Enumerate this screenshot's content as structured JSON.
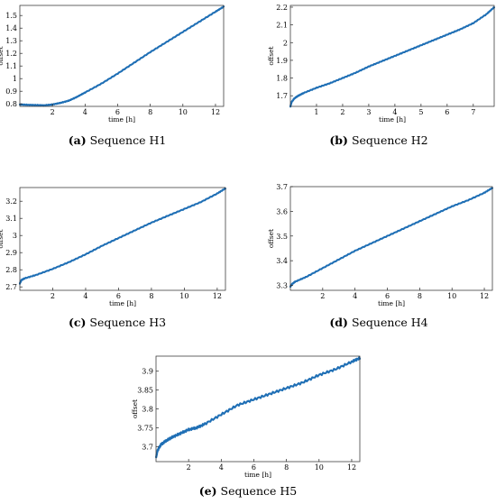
{
  "figures": [
    {
      "caption_tag": "(a)",
      "caption_text": "Sequence H1"
    },
    {
      "caption_tag": "(b)",
      "caption_text": "Sequence H2"
    },
    {
      "caption_tag": "(c)",
      "caption_text": "Sequence H3"
    },
    {
      "caption_tag": "(d)",
      "caption_text": "Sequence H4"
    },
    {
      "caption_tag": "(e)",
      "caption_text": "Sequence H5"
    }
  ],
  "chart_data": [
    {
      "type": "line",
      "xlabel": "time [h]",
      "ylabel": "offset",
      "xlim": [
        0,
        12.5
      ],
      "ylim": [
        0.78,
        1.58
      ],
      "xticks": [
        2,
        4,
        6,
        8,
        10,
        12
      ],
      "yticks": [
        0.8,
        0.9,
        1,
        1.1,
        1.2,
        1.3,
        1.4,
        1.5
      ],
      "ytick_labels": [
        "0.8",
        "0.9",
        "1",
        "1.1",
        "1.2",
        "1.3",
        "1.4",
        "1.5"
      ],
      "series": [
        {
          "color": "#1f6fb5",
          "x": [
            0,
            0.5,
            1,
            1.5,
            2,
            2.5,
            3,
            3.5,
            4,
            5,
            6,
            7,
            8,
            9,
            10,
            11,
            12,
            12.5
          ],
          "y": [
            0.795,
            0.792,
            0.79,
            0.788,
            0.795,
            0.808,
            0.825,
            0.855,
            0.89,
            0.96,
            1.04,
            1.125,
            1.21,
            1.29,
            1.37,
            1.45,
            1.53,
            1.57
          ]
        }
      ]
    },
    {
      "type": "line",
      "xlabel": "time [h]",
      "ylabel": "offset",
      "xlim": [
        0,
        7.8
      ],
      "ylim": [
        1.64,
        2.21
      ],
      "xticks": [
        1,
        2,
        3,
        4,
        5,
        6,
        7
      ],
      "yticks": [
        1.7,
        1.8,
        1.9,
        2,
        2.1,
        2.2
      ],
      "ytick_labels": [
        "1.7",
        "1.8",
        "1.9",
        "2",
        "2.1",
        "2.2"
      ],
      "series": [
        {
          "color": "#1f6fb5",
          "x": [
            0,
            0.05,
            0.15,
            0.3,
            0.5,
            1,
            1.5,
            2,
            2.5,
            3,
            3.5,
            4,
            4.5,
            5,
            5.5,
            6,
            6.5,
            7,
            7.5,
            7.8
          ],
          "y": [
            1.64,
            1.665,
            1.685,
            1.7,
            1.715,
            1.745,
            1.77,
            1.8,
            1.83,
            1.865,
            1.895,
            1.925,
            1.955,
            1.985,
            2.015,
            2.045,
            2.075,
            2.11,
            2.16,
            2.2
          ]
        }
      ]
    },
    {
      "type": "line",
      "xlabel": "time [h]",
      "ylabel": "offset",
      "xlim": [
        0,
        12.5
      ],
      "ylim": [
        2.68,
        3.28
      ],
      "xticks": [
        2,
        4,
        6,
        8,
        10,
        12
      ],
      "yticks": [
        2.7,
        2.8,
        2.9,
        3,
        3.1,
        3.2
      ],
      "ytick_labels": [
        "2.7",
        "2.8",
        "2.9",
        "3",
        "3.1",
        "3.2"
      ],
      "series": [
        {
          "color": "#1f6fb5",
          "x": [
            0,
            0.1,
            0.3,
            1,
            2,
            3,
            4,
            5,
            6,
            7,
            8,
            9,
            10,
            11,
            12,
            12.5
          ],
          "y": [
            2.72,
            2.74,
            2.75,
            2.77,
            2.805,
            2.845,
            2.89,
            2.94,
            2.985,
            3.03,
            3.075,
            3.115,
            3.155,
            3.195,
            3.245,
            3.275
          ]
        }
      ]
    },
    {
      "type": "line",
      "xlabel": "time [h]",
      "ylabel": "offset",
      "xlim": [
        0,
        12.5
      ],
      "ylim": [
        3.28,
        3.7
      ],
      "xticks": [
        2,
        4,
        6,
        8,
        10,
        12
      ],
      "yticks": [
        3.3,
        3.4,
        3.5,
        3.6,
        3.7
      ],
      "ytick_labels": [
        "3.3",
        "3.4",
        "3.5",
        "3.6",
        "3.7"
      ],
      "series": [
        {
          "color": "#1f6fb5",
          "x": [
            0,
            0.1,
            0.3,
            1,
            2,
            3,
            4,
            5,
            6,
            7,
            8,
            9,
            10,
            11,
            12,
            12.5
          ],
          "y": [
            3.295,
            3.305,
            3.315,
            3.335,
            3.37,
            3.405,
            3.44,
            3.47,
            3.5,
            3.53,
            3.56,
            3.59,
            3.62,
            3.645,
            3.675,
            3.695
          ]
        }
      ]
    },
    {
      "type": "line",
      "xlabel": "time [h]",
      "ylabel": "offset",
      "xlim": [
        0,
        12.5
      ],
      "ylim": [
        3.66,
        3.94
      ],
      "xticks": [
        2,
        4,
        6,
        8,
        10,
        12
      ],
      "yticks": [
        3.7,
        3.75,
        3.8,
        3.85,
        3.9
      ],
      "ytick_labels": [
        "3.7",
        "3.75",
        "3.8",
        "3.85",
        "3.9"
      ],
      "series": [
        {
          "color": "#1f6fb5",
          "x": [
            0,
            0.1,
            0.3,
            0.6,
            1,
            1.5,
            2,
            2.5,
            3,
            4,
            5,
            6,
            7,
            8,
            9,
            10,
            11,
            12,
            12.5
          ],
          "y": [
            3.67,
            3.69,
            3.705,
            3.715,
            3.725,
            3.735,
            3.745,
            3.75,
            3.76,
            3.785,
            3.81,
            3.825,
            3.84,
            3.855,
            3.87,
            3.89,
            3.905,
            3.925,
            3.935
          ]
        }
      ]
    }
  ]
}
